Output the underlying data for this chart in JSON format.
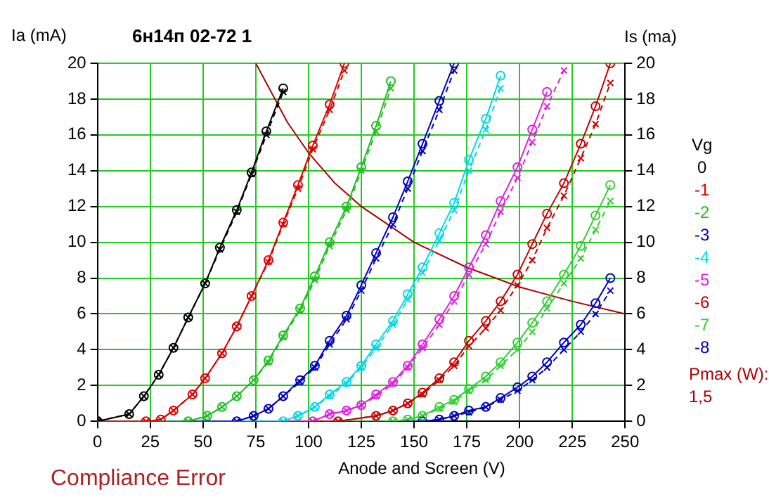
{
  "chart_data": {
    "type": "line",
    "title": "6н14п 02-72 1",
    "xlabel": "Anode and Screen (V)",
    "ylabel": "Ia (mA)",
    "y2label": "Is (ma)",
    "legend_title": "Vg",
    "legend": "right",
    "grid": true,
    "xlim": [
      0,
      250
    ],
    "xticks": [
      0,
      25,
      50,
      75,
      100,
      125,
      150,
      175,
      200,
      225,
      250
    ],
    "ylim": [
      0,
      20
    ],
    "yticks": [
      0,
      2,
      4,
      6,
      8,
      10,
      12,
      14,
      16,
      18,
      20
    ],
    "y2lim": [
      0,
      20
    ],
    "y2ticks": [
      0,
      2,
      4,
      6,
      8,
      10,
      12,
      14,
      16,
      18,
      20
    ],
    "annotations": [
      "Pmax (W):",
      "1,5",
      "Compliance Error"
    ],
    "series": [
      {
        "name": "0",
        "color": "#000000",
        "marker": "circle",
        "line_style": "solid",
        "x": [
          0,
          15,
          22,
          29,
          36,
          43,
          51,
          58,
          66,
          73,
          80,
          88
        ],
        "values": [
          0,
          0.4,
          1.4,
          2.6,
          4.1,
          5.8,
          7.7,
          9.7,
          11.8,
          13.9,
          16.2,
          18.6
        ]
      },
      {
        "name": "-1",
        "color": "#e00000",
        "marker": "circle",
        "line_style": "solid",
        "x": [
          0,
          23,
          30,
          36,
          45,
          51,
          59,
          66,
          73,
          81,
          88,
          95,
          102,
          110,
          117
        ],
        "values": [
          0,
          0,
          0.1,
          0.6,
          1.5,
          2.4,
          3.8,
          5.3,
          7.0,
          9.0,
          11.1,
          13.2,
          15.4,
          17.7,
          20
        ]
      },
      {
        "name": "-2",
        "color": "#20c020",
        "marker": "circle",
        "line_style": "solid",
        "x": [
          0,
          43,
          52,
          59,
          66,
          74,
          81,
          88,
          96,
          103,
          110,
          118,
          125,
          132,
          139
        ],
        "values": [
          0,
          0,
          0.3,
          0.8,
          1.4,
          2.3,
          3.4,
          4.8,
          6.3,
          8.1,
          10.0,
          12.0,
          14.2,
          16.5,
          19.0
        ]
      },
      {
        "name": "-3",
        "color": "#0000c0",
        "marker": "circle",
        "line_style": "solid",
        "x": [
          0,
          66,
          74,
          81,
          88,
          96,
          103,
          110,
          118,
          125,
          132,
          140,
          147,
          154,
          162,
          169
        ],
        "values": [
          0,
          0,
          0.3,
          0.7,
          1.4,
          2.3,
          3.1,
          4.5,
          5.9,
          7.6,
          9.4,
          11.4,
          13.4,
          15.5,
          17.9,
          20
        ]
      },
      {
        "name": "-4",
        "color": "#00d8e8",
        "marker": "circle",
        "line_style": "solid",
        "x": [
          0,
          88,
          95,
          103,
          110,
          118,
          125,
          132,
          140,
          147,
          154,
          162,
          169,
          176,
          184,
          191
        ],
        "values": [
          0,
          0,
          0.3,
          0.8,
          1.5,
          2.2,
          3.1,
          4.3,
          5.6,
          7.1,
          8.6,
          10.5,
          12.2,
          14.6,
          16.9,
          19.3
        ]
      },
      {
        "name": "-5",
        "color": "#e020e0",
        "marker": "circle",
        "line_style": "solid",
        "x": [
          0,
          102,
          110,
          118,
          125,
          132,
          140,
          147,
          154,
          162,
          169,
          176,
          184,
          191,
          199,
          206,
          213
        ],
        "values": [
          0,
          0,
          0.4,
          0.6,
          0.9,
          1.5,
          2.2,
          3.1,
          4.3,
          5.7,
          7.0,
          8.6,
          10.4,
          12.3,
          14.2,
          16.3,
          18.4
        ]
      },
      {
        "name": "-6",
        "color": "#c80000",
        "marker": "circle",
        "line_style": "solid",
        "x": [
          0,
          114,
          132,
          140,
          147,
          154,
          162,
          169,
          176,
          184,
          191,
          199,
          206,
          213,
          221,
          229,
          236,
          243
        ],
        "values": [
          0,
          0,
          0.3,
          0.6,
          1.0,
          1.6,
          2.4,
          3.3,
          4.5,
          5.6,
          6.7,
          8.2,
          9.9,
          11.6,
          13.3,
          15.5,
          17.6,
          20
        ]
      },
      {
        "name": "-7",
        "color": "#30d030",
        "marker": "circle",
        "line_style": "solid",
        "x": [
          0,
          140,
          147,
          154,
          162,
          169,
          176,
          184,
          191,
          199,
          206,
          213,
          221,
          229,
          236,
          243
        ],
        "values": [
          0,
          0,
          0.1,
          0.3,
          0.8,
          1.2,
          1.8,
          2.5,
          3.3,
          4.4,
          5.5,
          6.7,
          8.2,
          9.8,
          11.5,
          13.2
        ]
      },
      {
        "name": "-8",
        "color": "#0000c0",
        "marker": "circle",
        "line_style": "solid",
        "x": [
          0,
          154,
          162,
          169,
          176,
          184,
          191,
          199,
          206,
          213,
          221,
          229,
          236,
          243
        ],
        "values": [
          0,
          0,
          0.1,
          0.3,
          0.6,
          0.8,
          1.3,
          1.9,
          2.5,
          3.3,
          4.4,
          5.4,
          6.6,
          8.0
        ]
      },
      {
        "color": "#000000",
        "marker": "cross",
        "line_style": "dashed",
        "x": [
          0,
          15,
          22,
          29,
          36,
          43,
          51,
          58,
          66,
          73,
          80,
          88
        ],
        "values": [
          0,
          0.4,
          1.4,
          2.6,
          4.1,
          5.8,
          7.7,
          9.6,
          11.7,
          13.8,
          16.0,
          18.4
        ]
      },
      {
        "color": "#e00000",
        "marker": "cross",
        "line_style": "dashed",
        "x": [
          0,
          23,
          30,
          36,
          45,
          51,
          59,
          66,
          73,
          81,
          88,
          95,
          102,
          110,
          117
        ],
        "values": [
          0,
          0,
          0.1,
          0.6,
          1.5,
          2.4,
          3.8,
          5.3,
          7.0,
          8.9,
          11.0,
          13.0,
          15.2,
          17.4,
          19.6
        ]
      },
      {
        "color": "#20c020",
        "marker": "cross",
        "line_style": "dashed",
        "x": [
          0,
          43,
          52,
          59,
          66,
          74,
          81,
          88,
          96,
          103,
          110,
          118,
          125,
          132,
          139
        ],
        "values": [
          0,
          0,
          0.3,
          0.8,
          1.4,
          2.3,
          3.3,
          4.7,
          6.2,
          7.9,
          9.8,
          11.8,
          14.0,
          16.2,
          18.6
        ]
      },
      {
        "color": "#0000c0",
        "marker": "cross",
        "line_style": "dashed",
        "x": [
          0,
          66,
          74,
          81,
          88,
          96,
          103,
          110,
          118,
          125,
          132,
          140,
          147,
          154,
          162,
          169
        ],
        "values": [
          0,
          0,
          0.3,
          0.7,
          1.4,
          2.2,
          3.0,
          4.3,
          5.7,
          7.3,
          9.1,
          11.0,
          13.0,
          15.1,
          17.4,
          19.6
        ]
      },
      {
        "color": "#00d8e8",
        "marker": "cross",
        "line_style": "dashed",
        "x": [
          0,
          88,
          95,
          103,
          110,
          118,
          125,
          132,
          140,
          147,
          154,
          162,
          169,
          176,
          184,
          191
        ],
        "values": [
          0,
          0,
          0.3,
          0.8,
          1.4,
          2.1,
          3.0,
          4.1,
          5.4,
          6.8,
          8.3,
          10.1,
          11.8,
          14.0,
          16.3,
          18.6
        ]
      },
      {
        "color": "#e020e0",
        "marker": "cross",
        "line_style": "dashed",
        "x": [
          0,
          102,
          110,
          118,
          125,
          132,
          140,
          147,
          154,
          162,
          169,
          176,
          184,
          191,
          199,
          206,
          213,
          221
        ],
        "values": [
          0,
          0,
          0.4,
          0.6,
          0.9,
          1.4,
          2.1,
          3.0,
          4.1,
          5.4,
          6.7,
          8.2,
          9.9,
          11.7,
          13.6,
          15.6,
          17.6,
          19.6
        ]
      },
      {
        "color": "#c80000",
        "marker": "cross",
        "line_style": "dashed",
        "x": [
          0,
          114,
          132,
          140,
          147,
          154,
          162,
          169,
          176,
          184,
          191,
          199,
          206,
          213,
          221,
          229,
          236,
          243
        ],
        "values": [
          0,
          0,
          0.3,
          0.6,
          1.0,
          1.5,
          2.3,
          3.1,
          4.2,
          5.2,
          6.2,
          7.6,
          9.0,
          10.8,
          12.6,
          14.7,
          16.6,
          18.9
        ]
      },
      {
        "color": "#30d030",
        "marker": "cross",
        "line_style": "dashed",
        "x": [
          0,
          140,
          147,
          154,
          162,
          169,
          176,
          184,
          191,
          199,
          206,
          213,
          221,
          229,
          236,
          243
        ],
        "values": [
          0,
          0,
          0.1,
          0.3,
          0.7,
          1.1,
          1.7,
          2.3,
          3.1,
          4.0,
          5.0,
          6.3,
          7.7,
          9.1,
          10.7,
          12.3
        ]
      },
      {
        "color": "#0000c0",
        "marker": "cross",
        "line_style": "dashed",
        "x": [
          0,
          154,
          162,
          169,
          176,
          184,
          191,
          199,
          206,
          213,
          221,
          229,
          236,
          243
        ],
        "values": [
          0,
          0,
          0.1,
          0.3,
          0.5,
          0.8,
          1.2,
          1.7,
          2.3,
          3.0,
          4.0,
          5.0,
          6.0,
          7.3
        ]
      },
      {
        "color": "#b00000",
        "marker": "none",
        "line_style": "solid",
        "x": [
          75,
          90,
          100,
          112.5,
          125,
          150,
          175,
          200,
          225,
          250
        ],
        "values": [
          20,
          16.7,
          15,
          13.3,
          12,
          10,
          8.6,
          7.5,
          6.7,
          6
        ]
      }
    ]
  }
}
